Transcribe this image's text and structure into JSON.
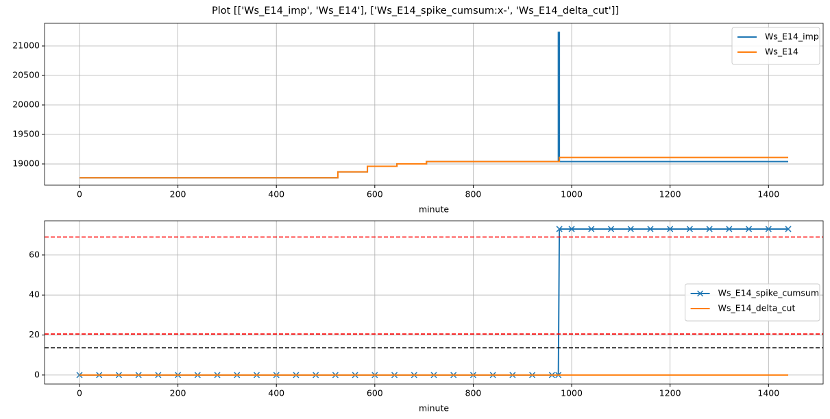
{
  "title": "Plot [['Ws_E14_imp', 'Ws_E14'], ['Ws_E14_spike_cumsum:x-', 'Ws_E14_delta_cut']]",
  "chart_data": [
    {
      "type": "line",
      "xlabel": "minute",
      "grid": true,
      "legend": "upper right",
      "xlim": [
        -71,
        1511
      ],
      "xticks": [
        0,
        200,
        400,
        600,
        800,
        1000,
        1200,
        1400
      ],
      "ylim": [
        18640,
        21384
      ],
      "yticks": [
        19000,
        19500,
        20000,
        20500,
        21000
      ],
      "x": [
        0,
        525,
        525,
        585,
        585,
        645,
        645,
        705,
        705,
        973,
        973,
        975,
        975,
        1440
      ],
      "series": [
        {
          "name": "Ws_E14_imp",
          "color": "#1f77b4",
          "values": [
            18765,
            18765,
            18865,
            18865,
            18960,
            18960,
            19000,
            19000,
            19040,
            19040,
            21230,
            21230,
            19040,
            19040
          ]
        },
        {
          "name": "Ws_E14",
          "color": "#ff7f0e",
          "values": [
            18765,
            18765,
            18865,
            18865,
            18960,
            18960,
            19000,
            19000,
            19040,
            19040,
            19040,
            19040,
            19110,
            19110
          ]
        }
      ]
    },
    {
      "type": "line",
      "xlabel": "minute",
      "grid": true,
      "legend": "center right",
      "xlim": [
        -71,
        1511
      ],
      "xticks": [
        0,
        200,
        400,
        600,
        800,
        1000,
        1200,
        1400
      ],
      "ylim": [
        -4.5,
        77.1
      ],
      "yticks": [
        0,
        20,
        40,
        60
      ],
      "hlines": [
        {
          "value": 69,
          "color": "red"
        },
        {
          "value": 20.5,
          "color": "red"
        },
        {
          "value": 13.6,
          "color": "black"
        }
      ],
      "x": [
        0,
        40,
        80,
        120,
        160,
        200,
        240,
        280,
        320,
        360,
        400,
        440,
        480,
        520,
        560,
        600,
        640,
        680,
        720,
        760,
        800,
        840,
        880,
        920,
        960,
        973,
        975,
        1000,
        1040,
        1080,
        1120,
        1160,
        1200,
        1240,
        1280,
        1320,
        1360,
        1400,
        1440
      ],
      "series": [
        {
          "name": "Ws_E14_spike_cumsum",
          "color": "#1f77b4",
          "marker": "x",
          "values": [
            0,
            0,
            0,
            0,
            0,
            0,
            0,
            0,
            0,
            0,
            0,
            0,
            0,
            0,
            0,
            0,
            0,
            0,
            0,
            0,
            0,
            0,
            0,
            0,
            0,
            0,
            73,
            73,
            73,
            73,
            73,
            73,
            73,
            73,
            73,
            73,
            73,
            73,
            73
          ]
        },
        {
          "name": "Ws_E14_delta_cut",
          "color": "#ff7f0e",
          "values": [
            0,
            0,
            0,
            0,
            0,
            0,
            0,
            0,
            0,
            0,
            0,
            0,
            0,
            0,
            0,
            0,
            0,
            0,
            0,
            0,
            0,
            0,
            0,
            0,
            0,
            0,
            0,
            0,
            0,
            0,
            0,
            0,
            0,
            0,
            0,
            0,
            0,
            0,
            0
          ]
        }
      ]
    }
  ]
}
